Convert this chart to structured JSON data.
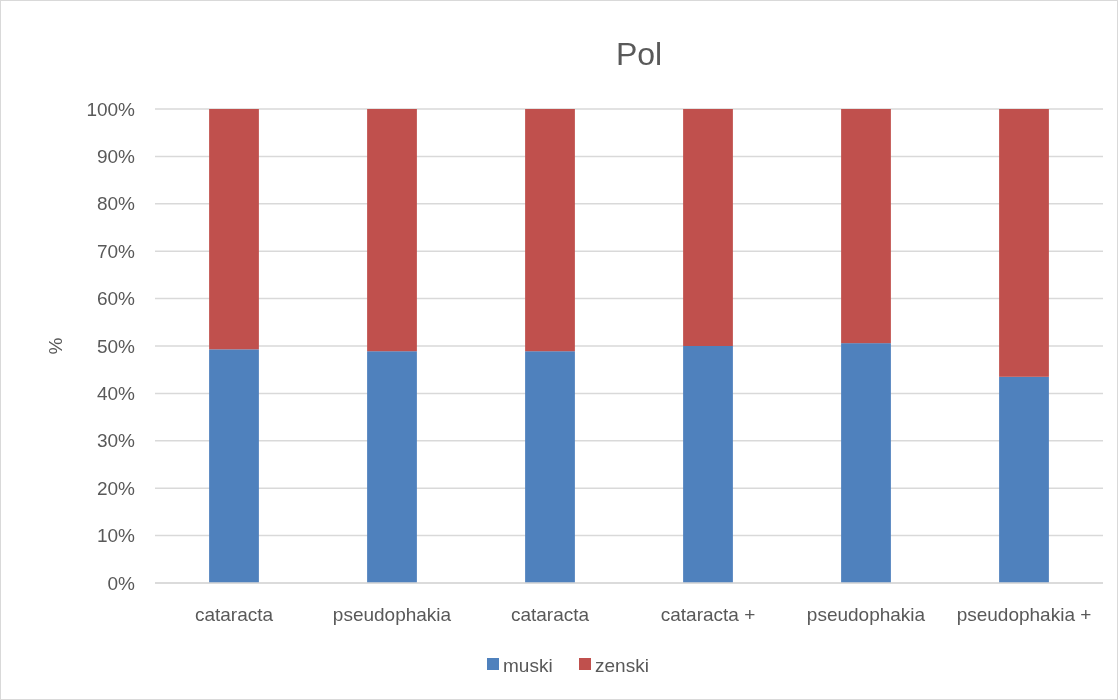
{
  "chart_data": {
    "type": "bar",
    "title": "Pol",
    "ylabel": "%",
    "stacked": true,
    "categories": [
      "cataracta",
      "pseudophakia",
      "cataracta",
      "cataracta +",
      "pseudophakia",
      "pseudophakia +"
    ],
    "series": [
      {
        "name": "muski",
        "color": "#4f81bd",
        "values": [
          49.3,
          48.9,
          48.9,
          50.0,
          50.6,
          43.5
        ]
      },
      {
        "name": "zenski",
        "color": "#c0504d",
        "values": [
          50.7,
          51.1,
          51.1,
          50.0,
          49.4,
          56.5
        ]
      }
    ],
    "ylim": [
      0,
      100
    ],
    "yticks": [
      {
        "value": 0,
        "label": "0%"
      },
      {
        "value": 10,
        "label": "10%"
      },
      {
        "value": 20,
        "label": "20%"
      },
      {
        "value": 30,
        "label": "30%"
      },
      {
        "value": 40,
        "label": "40%"
      },
      {
        "value": 50,
        "label": "50%"
      },
      {
        "value": 60,
        "label": "60%"
      },
      {
        "value": 70,
        "label": "70%"
      },
      {
        "value": 80,
        "label": "80%"
      },
      {
        "value": 90,
        "label": "90%"
      },
      {
        "value": 100,
        "label": "100%"
      }
    ],
    "grid": "y",
    "legend": "bottom"
  }
}
